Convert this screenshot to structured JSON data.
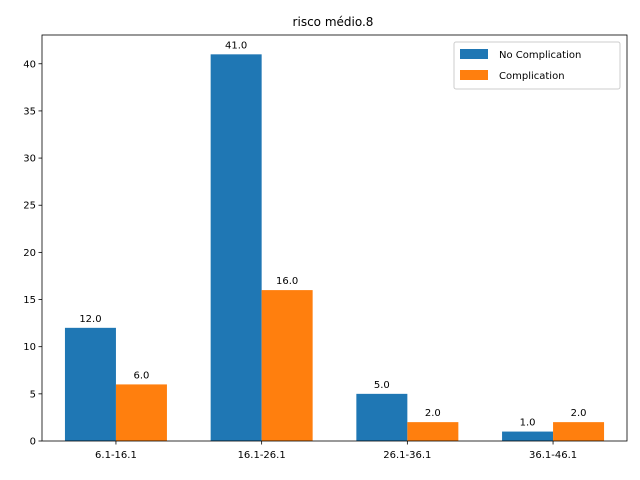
{
  "chart_data": {
    "type": "bar",
    "title": "risco médio.8",
    "xlabel": "",
    "ylabel": "",
    "categories": [
      "6.1-16.1",
      "16.1-26.1",
      "26.1-36.1",
      "36.1-46.1"
    ],
    "series": [
      {
        "name": "No Complication",
        "values": [
          12.0,
          41.0,
          5.0,
          1.0
        ],
        "color": "#1f77b4"
      },
      {
        "name": "Complication",
        "values": [
          6.0,
          16.0,
          2.0,
          2.0
        ],
        "color": "#ff7f0e"
      }
    ],
    "data_labels": [
      [
        "12.0",
        "41.0",
        "5.0",
        "1.0"
      ],
      [
        "6.0",
        "16.0",
        "2.0",
        "2.0"
      ]
    ],
    "ylim": [
      0,
      43.05
    ],
    "yticks": [
      0,
      5,
      10,
      15,
      20,
      25,
      30,
      35,
      40
    ],
    "ytick_labels": [
      "0",
      "5",
      "10",
      "15",
      "20",
      "25",
      "30",
      "35",
      "40"
    ],
    "grid": false,
    "legend_position": "top-right"
  }
}
